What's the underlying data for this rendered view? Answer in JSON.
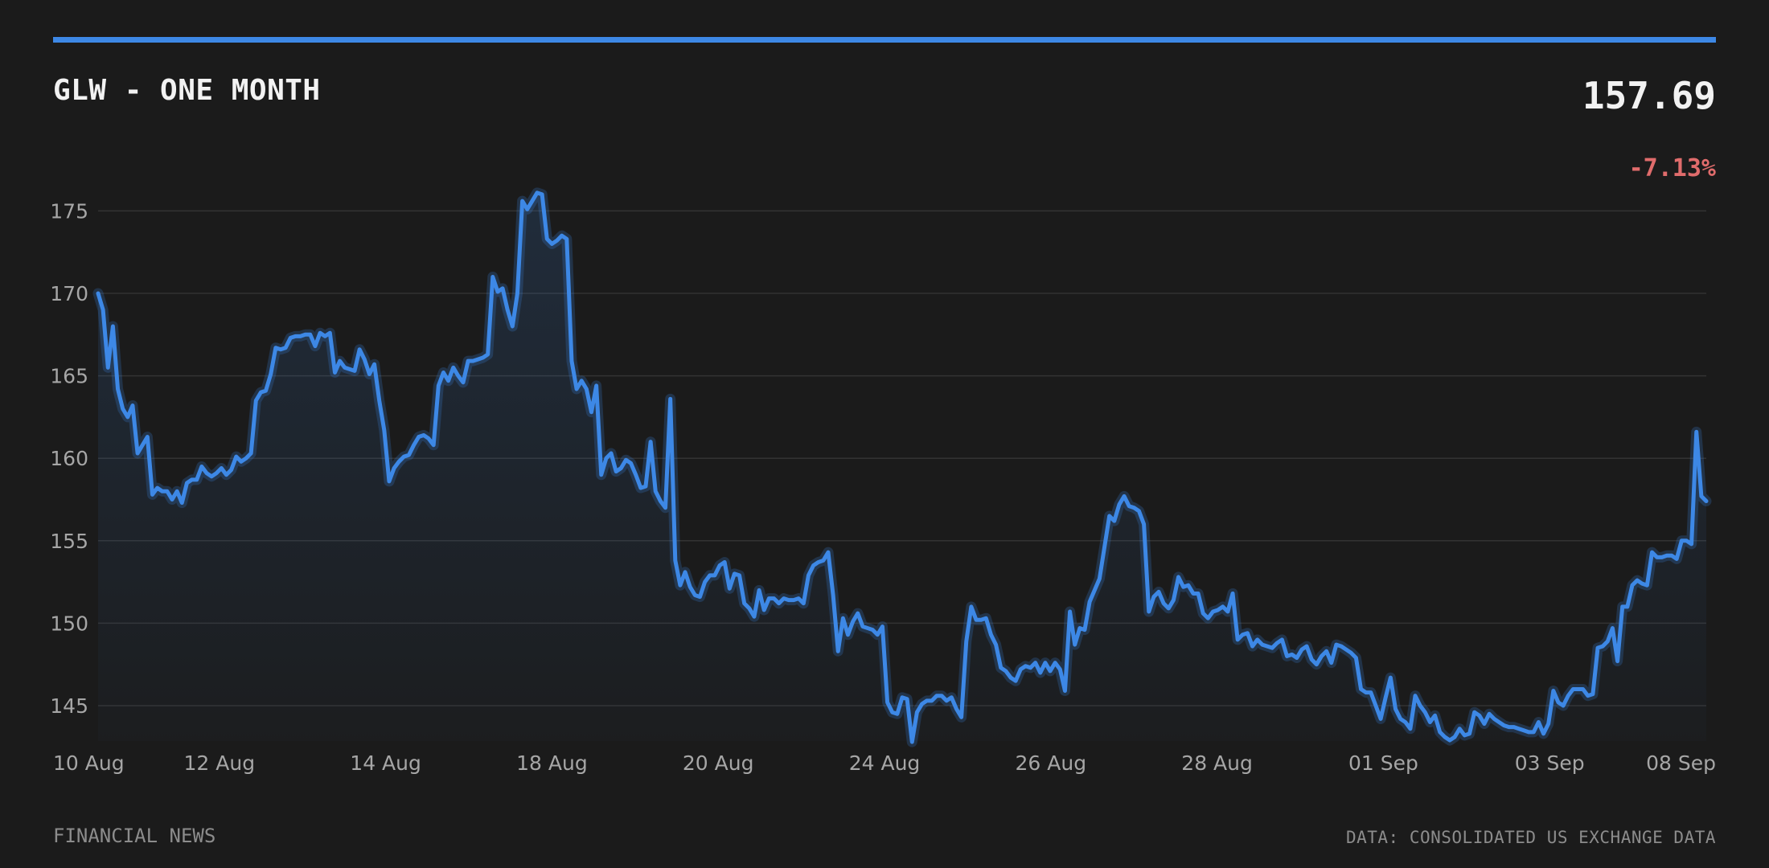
{
  "header": {
    "title": "GLW - ONE MONTH",
    "price": "157.69",
    "change": "-7.13%",
    "change_color": "#e06c6c"
  },
  "footer": {
    "source_left": "FINANCIAL NEWS",
    "source_right": "DATA: CONSOLIDATED US EXCHANGE DATA"
  },
  "colors": {
    "accent": "#3d88e6",
    "background": "#1b1b1b",
    "grid": "#333333",
    "tick_text": "#a6a6a6"
  },
  "chart_data": {
    "type": "area",
    "grid": true,
    "ylim": [
      142.3,
      176.3
    ],
    "yticks": [
      145,
      150,
      155,
      160,
      165,
      170,
      175
    ],
    "xticks": [
      "10 Aug",
      "12 Aug",
      "14 Aug",
      "18 Aug",
      "20 Aug",
      "24 Aug",
      "26 Aug",
      "28 Aug",
      "01 Sep",
      "03 Sep",
      "08 Sep"
    ],
    "series": [
      {
        "values": [
          170.0,
          169.0,
          165.5,
          168.0,
          164.2,
          163.0,
          162.5,
          163.2,
          160.3,
          160.8,
          161.3,
          157.8,
          158.2,
          158.0,
          158.0,
          157.5,
          158.0,
          157.3,
          158.5,
          158.7,
          158.7,
          159.5,
          159.1,
          158.9,
          159.1,
          159.4,
          159.0,
          159.3,
          160.1,
          159.8,
          160.0,
          160.3,
          163.5,
          164.0,
          164.1,
          165.1,
          166.7,
          166.6,
          166.7,
          167.3,
          167.4,
          167.4,
          167.5,
          167.5,
          166.8,
          167.6,
          167.4,
          167.6,
          165.2,
          165.9,
          165.5,
          165.4,
          165.3,
          166.6,
          166.0,
          165.1,
          165.7,
          163.5,
          161.7,
          158.6,
          159.4,
          159.8,
          160.1,
          160.2,
          160.8,
          161.3,
          161.4,
          161.2,
          160.8,
          164.4,
          165.2,
          164.7,
          165.5,
          165.0,
          164.6,
          165.9,
          165.9,
          166.0,
          166.1,
          166.3,
          171.0,
          170.1,
          170.3,
          169.0,
          168.0,
          170.0,
          175.6,
          175.1,
          175.6,
          176.1,
          176.0,
          173.3,
          173.0,
          173.2,
          173.5,
          173.3,
          165.9,
          164.2,
          164.7,
          164.2,
          162.8,
          164.4,
          159.0,
          160.0,
          160.3,
          159.2,
          159.4,
          159.9,
          159.7,
          159.0,
          158.2,
          158.3,
          161.0,
          158.0,
          157.4,
          157.0,
          163.6,
          153.8,
          152.3,
          153.1,
          152.2,
          151.7,
          151.6,
          152.5,
          152.9,
          152.9,
          153.5,
          153.7,
          152.1,
          153.0,
          152.9,
          151.2,
          150.9,
          150.4,
          152.0,
          150.8,
          151.5,
          151.5,
          151.2,
          151.5,
          151.4,
          151.4,
          151.5,
          151.2,
          152.9,
          153.5,
          153.7,
          153.8,
          154.3,
          151.7,
          148.3,
          150.3,
          149.3,
          150.1,
          150.6,
          149.8,
          149.7,
          149.6,
          149.3,
          149.8,
          145.2,
          144.6,
          144.5,
          145.5,
          145.4,
          142.8,
          144.6,
          145.1,
          145.3,
          145.3,
          145.6,
          145.6,
          145.3,
          145.5,
          144.8,
          144.3,
          148.9,
          151.0,
          150.2,
          150.2,
          150.3,
          149.3,
          148.7,
          147.3,
          147.1,
          146.7,
          146.5,
          147.2,
          147.4,
          147.3,
          147.6,
          147.0,
          147.6,
          147.1,
          147.6,
          147.2,
          145.9,
          150.7,
          148.7,
          149.7,
          149.6,
          151.3,
          152.0,
          152.7,
          154.6,
          156.5,
          156.2,
          157.2,
          157.7,
          157.1,
          157.0,
          156.8,
          156.0,
          150.7,
          151.6,
          151.9,
          151.2,
          150.9,
          151.4,
          152.8,
          152.2,
          152.3,
          151.8,
          151.8,
          150.6,
          150.3,
          150.7,
          150.8,
          151.0,
          150.7,
          151.8,
          149.0,
          149.3,
          149.4,
          148.6,
          149.0,
          148.7,
          148.6,
          148.5,
          148.8,
          149.0,
          148.0,
          148.1,
          147.9,
          148.4,
          148.6,
          147.8,
          147.5,
          148.0,
          148.3,
          147.6,
          148.7,
          148.6,
          148.4,
          148.2,
          147.9,
          146.0,
          145.8,
          145.8,
          145.0,
          144.2,
          145.5,
          146.7,
          144.8,
          144.2,
          144.0,
          143.6,
          145.6,
          145.0,
          144.6,
          144.0,
          144.4,
          143.4,
          143.1,
          142.9,
          143.1,
          143.6,
          143.2,
          143.3,
          144.6,
          144.4,
          143.9,
          144.5,
          144.2,
          144.0,
          143.8,
          143.7,
          143.7,
          143.6,
          143.5,
          143.4,
          143.4,
          144.0,
          143.3,
          143.9,
          145.9,
          145.2,
          145.0,
          145.6,
          146.0,
          146.0,
          146.0,
          145.6,
          145.7,
          148.5,
          148.6,
          148.9,
          149.7,
          147.7,
          151.0,
          151.0,
          152.3,
          152.6,
          152.4,
          152.3,
          154.3,
          154.0,
          154.0,
          154.1,
          154.1,
          153.9,
          155.0,
          155.0,
          154.8,
          161.6,
          157.7,
          157.4
        ]
      }
    ]
  }
}
